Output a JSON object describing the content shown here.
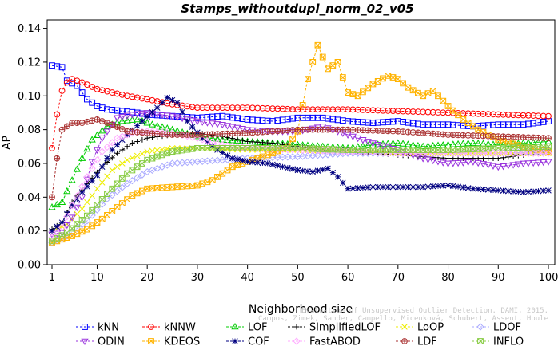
{
  "chart_data": {
    "type": "line",
    "title": "Stamps_withoutdupl_norm_02_v05",
    "xlabel": "Neighborhood size",
    "ylabel": "AP",
    "xlim": [
      1,
      100
    ],
    "ylim": [
      0,
      0.145
    ],
    "x_ticks": [
      "1",
      "10",
      "20",
      "30",
      "40",
      "50",
      "60",
      "70",
      "80",
      "90",
      "100"
    ],
    "y_ticks": [
      "0.00",
      "0.02",
      "0.04",
      "0.06",
      "0.08",
      "0.10",
      "0.12",
      "0.14"
    ],
    "legend_placement": "bottom",
    "credit": [
      "Evaluation of Unsupervised Outlier Detection. DAMI, 2015.",
      "Campos, Zimek, Sander, Campello, Micenková, Schubert, Assent, Houle"
    ],
    "series": [
      {
        "name": "kNN",
        "color": "#0000ff",
        "marker": "square",
        "points": [
          [
            1,
            0.118
          ],
          [
            3,
            0.117
          ],
          [
            4,
            0.109
          ],
          [
            6,
            0.106
          ],
          [
            8,
            0.098
          ],
          [
            10,
            0.094
          ],
          [
            12,
            0.092
          ],
          [
            15,
            0.091
          ],
          [
            18,
            0.09
          ],
          [
            20,
            0.089
          ],
          [
            25,
            0.088
          ],
          [
            30,
            0.087
          ],
          [
            35,
            0.088
          ],
          [
            40,
            0.086
          ],
          [
            45,
            0.085
          ],
          [
            50,
            0.087
          ],
          [
            55,
            0.087
          ],
          [
            60,
            0.085
          ],
          [
            65,
            0.084
          ],
          [
            70,
            0.085
          ],
          [
            75,
            0.083
          ],
          [
            80,
            0.083
          ],
          [
            85,
            0.082
          ],
          [
            90,
            0.083
          ],
          [
            95,
            0.083
          ],
          [
            100,
            0.085
          ]
        ]
      },
      {
        "name": "kNNW",
        "color": "#ff0000",
        "marker": "circle",
        "points": [
          [
            1,
            0.069
          ],
          [
            2,
            0.089
          ],
          [
            3,
            0.103
          ],
          [
            4,
            0.108
          ],
          [
            5,
            0.11
          ],
          [
            7,
            0.108
          ],
          [
            10,
            0.104
          ],
          [
            13,
            0.102
          ],
          [
            16,
            0.1
          ],
          [
            20,
            0.098
          ],
          [
            25,
            0.095
          ],
          [
            30,
            0.093
          ],
          [
            40,
            0.093
          ],
          [
            50,
            0.092
          ],
          [
            60,
            0.092
          ],
          [
            70,
            0.091
          ],
          [
            80,
            0.09
          ],
          [
            90,
            0.089
          ],
          [
            100,
            0.088
          ]
        ]
      },
      {
        "name": "LOF",
        "color": "#00cc00",
        "marker": "triangle-up",
        "points": [
          [
            1,
            0.034
          ],
          [
            3,
            0.037
          ],
          [
            5,
            0.05
          ],
          [
            7,
            0.063
          ],
          [
            9,
            0.074
          ],
          [
            12,
            0.082
          ],
          [
            15,
            0.085
          ],
          [
            18,
            0.086
          ],
          [
            21,
            0.083
          ],
          [
            25,
            0.08
          ],
          [
            30,
            0.076
          ],
          [
            35,
            0.074
          ],
          [
            40,
            0.073
          ],
          [
            45,
            0.072
          ],
          [
            50,
            0.071
          ],
          [
            55,
            0.07
          ],
          [
            60,
            0.069
          ],
          [
            65,
            0.071
          ],
          [
            70,
            0.072
          ],
          [
            75,
            0.07
          ],
          [
            80,
            0.071
          ],
          [
            85,
            0.072
          ],
          [
            90,
            0.071
          ],
          [
            95,
            0.072
          ],
          [
            100,
            0.073
          ]
        ]
      },
      {
        "name": "SimplifiedLOF",
        "color": "#000000",
        "marker": "plus",
        "points": [
          [
            1,
            0.021
          ],
          [
            3,
            0.025
          ],
          [
            5,
            0.037
          ],
          [
            8,
            0.048
          ],
          [
            11,
            0.058
          ],
          [
            14,
            0.066
          ],
          [
            17,
            0.072
          ],
          [
            20,
            0.075
          ],
          [
            25,
            0.077
          ],
          [
            30,
            0.078
          ],
          [
            35,
            0.076
          ],
          [
            40,
            0.073
          ],
          [
            45,
            0.072
          ],
          [
            50,
            0.07
          ],
          [
            55,
            0.068
          ],
          [
            60,
            0.068
          ],
          [
            65,
            0.066
          ],
          [
            70,
            0.065
          ],
          [
            75,
            0.064
          ],
          [
            80,
            0.063
          ],
          [
            85,
            0.063
          ],
          [
            90,
            0.063
          ],
          [
            95,
            0.065
          ],
          [
            100,
            0.068
          ]
        ]
      },
      {
        "name": "LoOP",
        "color": "#eeee00",
        "marker": "x",
        "points": [
          [
            1,
            0.02
          ],
          [
            4,
            0.024
          ],
          [
            7,
            0.033
          ],
          [
            10,
            0.045
          ],
          [
            13,
            0.056
          ],
          [
            16,
            0.062
          ],
          [
            20,
            0.067
          ],
          [
            25,
            0.069
          ],
          [
            30,
            0.069
          ],
          [
            40,
            0.068
          ],
          [
            50,
            0.068
          ],
          [
            60,
            0.067
          ],
          [
            70,
            0.066
          ],
          [
            80,
            0.066
          ],
          [
            90,
            0.066
          ],
          [
            100,
            0.066
          ]
        ]
      },
      {
        "name": "LDOF",
        "color": "#aaaaff",
        "marker": "diamond",
        "points": [
          [
            1,
            0.013
          ],
          [
            4,
            0.017
          ],
          [
            8,
            0.026
          ],
          [
            12,
            0.039
          ],
          [
            16,
            0.048
          ],
          [
            20,
            0.055
          ],
          [
            25,
            0.06
          ],
          [
            30,
            0.061
          ],
          [
            40,
            0.063
          ],
          [
            50,
            0.064
          ],
          [
            60,
            0.066
          ],
          [
            70,
            0.066
          ],
          [
            80,
            0.066
          ],
          [
            90,
            0.066
          ],
          [
            100,
            0.067
          ]
        ]
      },
      {
        "name": "ODIN",
        "color": "#9933dd",
        "marker": "triangle-down",
        "points": [
          [
            1,
            0.018
          ],
          [
            3,
            0.019
          ],
          [
            5,
            0.028
          ],
          [
            7,
            0.04
          ],
          [
            9,
            0.061
          ],
          [
            11,
            0.075
          ],
          [
            14,
            0.087
          ],
          [
            17,
            0.089
          ],
          [
            20,
            0.09
          ],
          [
            25,
            0.088
          ],
          [
            30,
            0.085
          ],
          [
            35,
            0.083
          ],
          [
            40,
            0.08
          ],
          [
            45,
            0.079
          ],
          [
            50,
            0.079
          ],
          [
            55,
            0.082
          ],
          [
            60,
            0.077
          ],
          [
            65,
            0.072
          ],
          [
            70,
            0.068
          ],
          [
            75,
            0.063
          ],
          [
            80,
            0.06
          ],
          [
            85,
            0.061
          ],
          [
            90,
            0.058
          ],
          [
            95,
            0.06
          ],
          [
            100,
            0.061
          ]
        ]
      },
      {
        "name": "KDEOS",
        "color": "#ffb300",
        "marker": "boxtimes",
        "points": [
          [
            1,
            0.013
          ],
          [
            3,
            0.015
          ],
          [
            5,
            0.017
          ],
          [
            8,
            0.021
          ],
          [
            11,
            0.027
          ],
          [
            14,
            0.034
          ],
          [
            17,
            0.041
          ],
          [
            20,
            0.045
          ],
          [
            25,
            0.046
          ],
          [
            30,
            0.047
          ],
          [
            33,
            0.05
          ],
          [
            37,
            0.058
          ],
          [
            40,
            0.061
          ],
          [
            45,
            0.066
          ],
          [
            48,
            0.07
          ],
          [
            50,
            0.079
          ],
          [
            52,
            0.11
          ],
          [
            54,
            0.13
          ],
          [
            56,
            0.116
          ],
          [
            58,
            0.12
          ],
          [
            60,
            0.102
          ],
          [
            62,
            0.1
          ],
          [
            65,
            0.107
          ],
          [
            68,
            0.112
          ],
          [
            70,
            0.11
          ],
          [
            72,
            0.105
          ],
          [
            75,
            0.1
          ],
          [
            77,
            0.103
          ],
          [
            80,
            0.094
          ],
          [
            83,
            0.086
          ],
          [
            86,
            0.08
          ],
          [
            90,
            0.074
          ],
          [
            95,
            0.07
          ],
          [
            100,
            0.067
          ]
        ]
      },
      {
        "name": "COF",
        "color": "#000080",
        "marker": "asterisk",
        "points": [
          [
            1,
            0.02
          ],
          [
            3,
            0.025
          ],
          [
            5,
            0.035
          ],
          [
            7,
            0.043
          ],
          [
            10,
            0.053
          ],
          [
            13,
            0.068
          ],
          [
            16,
            0.077
          ],
          [
            19,
            0.085
          ],
          [
            22,
            0.093
          ],
          [
            24,
            0.099
          ],
          [
            26,
            0.096
          ],
          [
            28,
            0.085
          ],
          [
            31,
            0.075
          ],
          [
            34,
            0.068
          ],
          [
            37,
            0.063
          ],
          [
            40,
            0.061
          ],
          [
            44,
            0.06
          ],
          [
            47,
            0.058
          ],
          [
            50,
            0.056
          ],
          [
            53,
            0.055
          ],
          [
            56,
            0.057
          ],
          [
            58,
            0.052
          ],
          [
            60,
            0.045
          ],
          [
            65,
            0.046
          ],
          [
            70,
            0.046
          ],
          [
            75,
            0.046
          ],
          [
            80,
            0.047
          ],
          [
            85,
            0.045
          ],
          [
            90,
            0.044
          ],
          [
            95,
            0.043
          ],
          [
            100,
            0.044
          ]
        ]
      },
      {
        "name": "FastABOD",
        "color": "#ffaaff",
        "marker": "diamond",
        "points": [
          [
            1,
            0.016
          ],
          [
            3,
            0.022
          ],
          [
            5,
            0.035
          ],
          [
            8,
            0.052
          ],
          [
            11,
            0.067
          ],
          [
            14,
            0.075
          ],
          [
            17,
            0.078
          ],
          [
            20,
            0.079
          ],
          [
            25,
            0.078
          ],
          [
            30,
            0.075
          ],
          [
            35,
            0.071
          ],
          [
            40,
            0.069
          ],
          [
            50,
            0.068
          ],
          [
            60,
            0.067
          ],
          [
            70,
            0.066
          ],
          [
            80,
            0.066
          ],
          [
            90,
            0.066
          ],
          [
            100,
            0.066
          ]
        ]
      },
      {
        "name": "LDF",
        "color": "#aa3333",
        "marker": "circle-plus",
        "points": [
          [
            1,
            0.04
          ],
          [
            2,
            0.063
          ],
          [
            3,
            0.08
          ],
          [
            5,
            0.084
          ],
          [
            7,
            0.084
          ],
          [
            10,
            0.086
          ],
          [
            13,
            0.083
          ],
          [
            16,
            0.079
          ],
          [
            20,
            0.078
          ],
          [
            25,
            0.077
          ],
          [
            30,
            0.077
          ],
          [
            40,
            0.078
          ],
          [
            50,
            0.08
          ],
          [
            60,
            0.08
          ],
          [
            70,
            0.079
          ],
          [
            80,
            0.077
          ],
          [
            90,
            0.076
          ],
          [
            100,
            0.075
          ]
        ]
      },
      {
        "name": "INFLO",
        "color": "#88cc44",
        "marker": "boxtimes",
        "points": [
          [
            1,
            0.014
          ],
          [
            4,
            0.019
          ],
          [
            8,
            0.029
          ],
          [
            12,
            0.042
          ],
          [
            16,
            0.054
          ],
          [
            20,
            0.062
          ],
          [
            25,
            0.067
          ],
          [
            30,
            0.069
          ],
          [
            40,
            0.069
          ],
          [
            50,
            0.069
          ],
          [
            60,
            0.068
          ],
          [
            70,
            0.068
          ],
          [
            80,
            0.068
          ],
          [
            90,
            0.069
          ],
          [
            100,
            0.07
          ]
        ]
      }
    ]
  }
}
